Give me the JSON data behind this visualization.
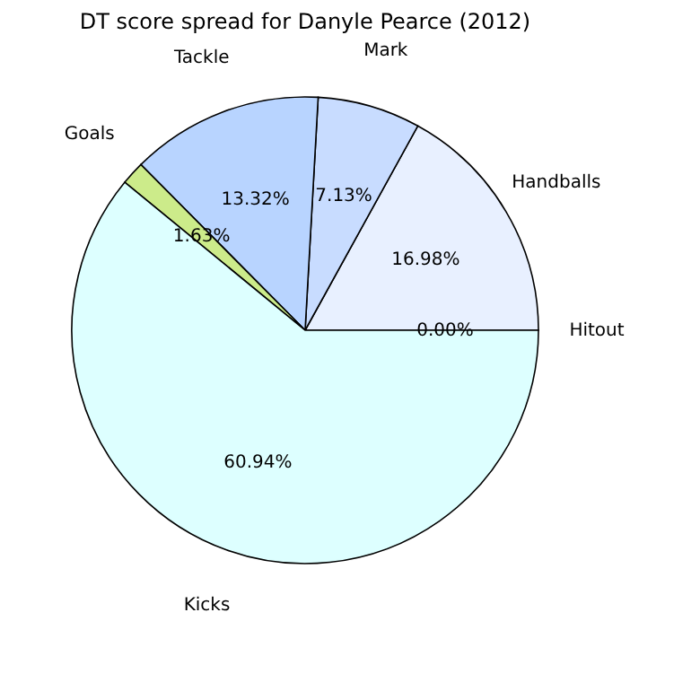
{
  "chart_data": {
    "type": "pie",
    "title": "DT score spread for Danyle Pearce (2012)",
    "categories": [
      "Hitout",
      "Handballs",
      "Mark",
      "Tackle",
      "Goals",
      "Kicks"
    ],
    "values": [
      0.0,
      16.98,
      7.13,
      13.32,
      1.63,
      60.94
    ],
    "value_labels": [
      "0.00%",
      "16.98%",
      "7.13%",
      "13.32%",
      "1.63%",
      "60.94%"
    ],
    "colors": [
      "#c8c8ff",
      "#e8f0ff",
      "#c8dcff",
      "#b8d4ff",
      "#cceb8a",
      "#ddffff"
    ],
    "legend": false
  }
}
